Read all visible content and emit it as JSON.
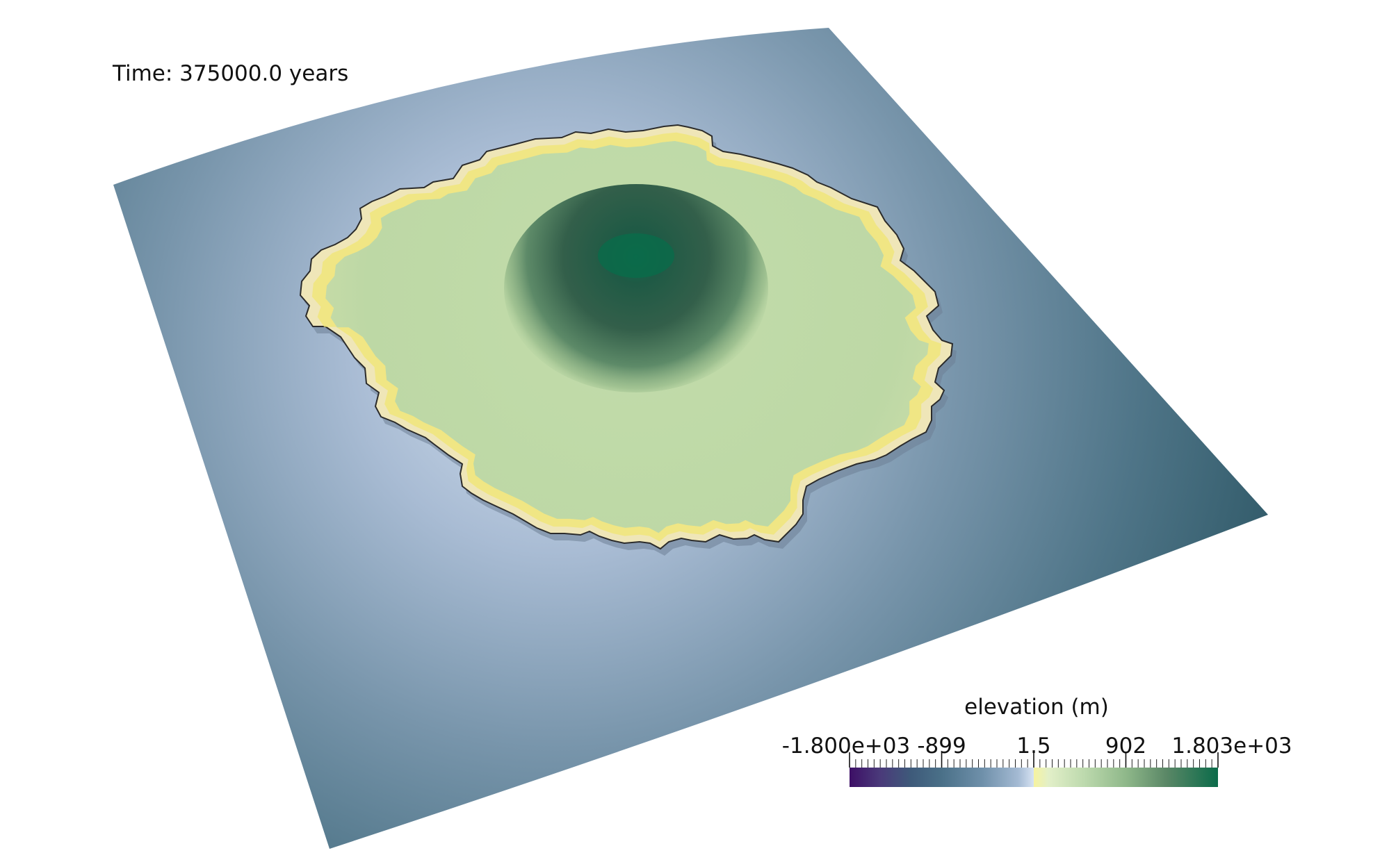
{
  "viewer": {
    "time_text": "Time: 375000.0 years"
  },
  "colorbar": {
    "title": "elevation (m)",
    "tick_labels": [
      "-1.800e+03",
      "-899",
      "1.5",
      "902",
      "1.803e+03"
    ],
    "tick_values": [
      -1800,
      -899,
      1.5,
      902,
      1803
    ],
    "range": [
      -1800,
      1803
    ],
    "colormap": [
      {
        "value": -1800,
        "color": "#3d0f66"
      },
      {
        "value": -1500,
        "color": "#4a3a7a"
      },
      {
        "value": -1200,
        "color": "#3e5a7a"
      },
      {
        "value": -899,
        "color": "#4a7088"
      },
      {
        "value": -500,
        "color": "#6f90aa"
      },
      {
        "value": -150,
        "color": "#a4bad3"
      },
      {
        "value": 0,
        "color": "#d6e2f2"
      },
      {
        "value": 1.5,
        "color": "#f6f3a0"
      },
      {
        "value": 150,
        "color": "#e2efc8"
      },
      {
        "value": 500,
        "color": "#bcd9ad"
      },
      {
        "value": 902,
        "color": "#8fb88a"
      },
      {
        "value": 1300,
        "color": "#5a8766"
      },
      {
        "value": 1803,
        "color": "#0b6b4a"
      }
    ]
  },
  "scene": {
    "ocean_deep_color": "#3e6a7a",
    "ocean_shallow_color": "#a9bcd4",
    "beach_color": "#f2e97a",
    "land_low_color": "#bcd7a6",
    "peak_color": "#0b6b4a"
  }
}
